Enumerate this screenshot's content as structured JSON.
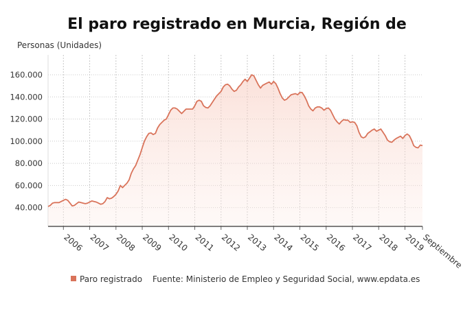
{
  "chart_data": {
    "type": "area",
    "title": "El paro registrado en Murcia, Región de",
    "y_label": "Personas (Unidades)",
    "source": "Fuente: Ministerio de Empleo y Seguridad Social, www.epdata.es",
    "legend": "bottom-left",
    "grid": true,
    "ylim": [
      23000,
      178000
    ],
    "yticks": [
      {
        "value": 40000,
        "label": "40.000"
      },
      {
        "value": 60000,
        "label": "60.000"
      },
      {
        "value": 80000,
        "label": "80.000"
      },
      {
        "value": 100000,
        "label": "100.000"
      },
      {
        "value": 120000,
        "label": "120.000"
      },
      {
        "value": 140000,
        "label": "140.000"
      },
      {
        "value": 160000,
        "label": "160.000"
      }
    ],
    "categories": [
      null,
      null,
      null,
      null,
      null,
      null,
      null,
      "2006",
      null,
      null,
      null,
      null,
      null,
      null,
      null,
      null,
      null,
      null,
      null,
      "2007",
      null,
      null,
      null,
      null,
      null,
      null,
      null,
      null,
      null,
      null,
      null,
      "2008",
      null,
      null,
      null,
      null,
      null,
      null,
      null,
      null,
      null,
      null,
      null,
      "2009",
      null,
      null,
      null,
      null,
      null,
      null,
      null,
      null,
      null,
      null,
      null,
      "2010",
      null,
      null,
      null,
      null,
      null,
      null,
      null,
      null,
      null,
      null,
      null,
      "2011",
      null,
      null,
      null,
      null,
      null,
      null,
      null,
      null,
      null,
      null,
      null,
      "2012",
      null,
      null,
      null,
      null,
      null,
      null,
      null,
      null,
      null,
      null,
      null,
      "2013",
      null,
      null,
      null,
      null,
      null,
      null,
      null,
      null,
      null,
      null,
      null,
      "2014",
      null,
      null,
      null,
      null,
      null,
      null,
      null,
      null,
      null,
      null,
      null,
      "2015",
      null,
      null,
      null,
      null,
      null,
      null,
      null,
      null,
      null,
      null,
      null,
      "2016",
      null,
      null,
      null,
      null,
      null,
      null,
      null,
      null,
      null,
      null,
      null,
      "2017",
      null,
      null,
      null,
      null,
      null,
      null,
      null,
      null,
      null,
      null,
      null,
      "2018",
      null,
      null,
      null,
      null,
      null,
      null,
      null,
      null,
      null,
      null,
      null,
      "2019",
      null,
      null,
      null,
      null,
      null,
      null,
      null,
      "Septiembre"
    ],
    "series": [
      {
        "name": "Paro registrado",
        "color": "#d9735a",
        "values": [
          41000,
          42000,
          44000,
          44500,
          44500,
          44500,
          45500,
          46500,
          47500,
          46500,
          44000,
          41500,
          42000,
          43500,
          45000,
          44500,
          44000,
          43500,
          44000,
          45000,
          46000,
          45500,
          45000,
          44000,
          43000,
          43500,
          45500,
          49000,
          48000,
          48500,
          50000,
          52000,
          55000,
          60000,
          58000,
          60000,
          62000,
          65000,
          71000,
          75000,
          78000,
          83000,
          88000,
          94000,
          100000,
          104000,
          107000,
          107500,
          106000,
          107000,
          112000,
          115000,
          117000,
          119000,
          120000,
          124000,
          128000,
          130000,
          130000,
          129000,
          127000,
          125000,
          127000,
          129000,
          129000,
          129000,
          129000,
          132000,
          136000,
          137000,
          136000,
          132000,
          130500,
          130000,
          132000,
          135000,
          138000,
          141000,
          143000,
          145000,
          149000,
          151000,
          151500,
          150000,
          147000,
          145000,
          146000,
          149000,
          151000,
          154000,
          156000,
          154000,
          157000,
          160000,
          159000,
          155000,
          151000,
          148000,
          150500,
          151500,
          152500,
          153500,
          151500,
          154000,
          152000,
          148000,
          143000,
          139000,
          137000,
          138000,
          140000,
          142000,
          142500,
          143000,
          142000,
          144000,
          144000,
          141000,
          137000,
          132000,
          129000,
          127500,
          130000,
          131000,
          131000,
          130000,
          128000,
          129500,
          130000,
          128000,
          124000,
          120000,
          117500,
          115500,
          118000,
          119500,
          119000,
          119000,
          117000,
          117500,
          117000,
          114000,
          108000,
          104000,
          103000,
          104000,
          107000,
          108500,
          110000,
          111000,
          109000,
          110000,
          111000,
          108000,
          105000,
          101000,
          99500,
          99000,
          101000,
          102500,
          103500,
          104500,
          102500,
          105000,
          106500,
          105000,
          101000,
          96000,
          94500,
          94000,
          96500,
          96000
        ]
      }
    ]
  }
}
